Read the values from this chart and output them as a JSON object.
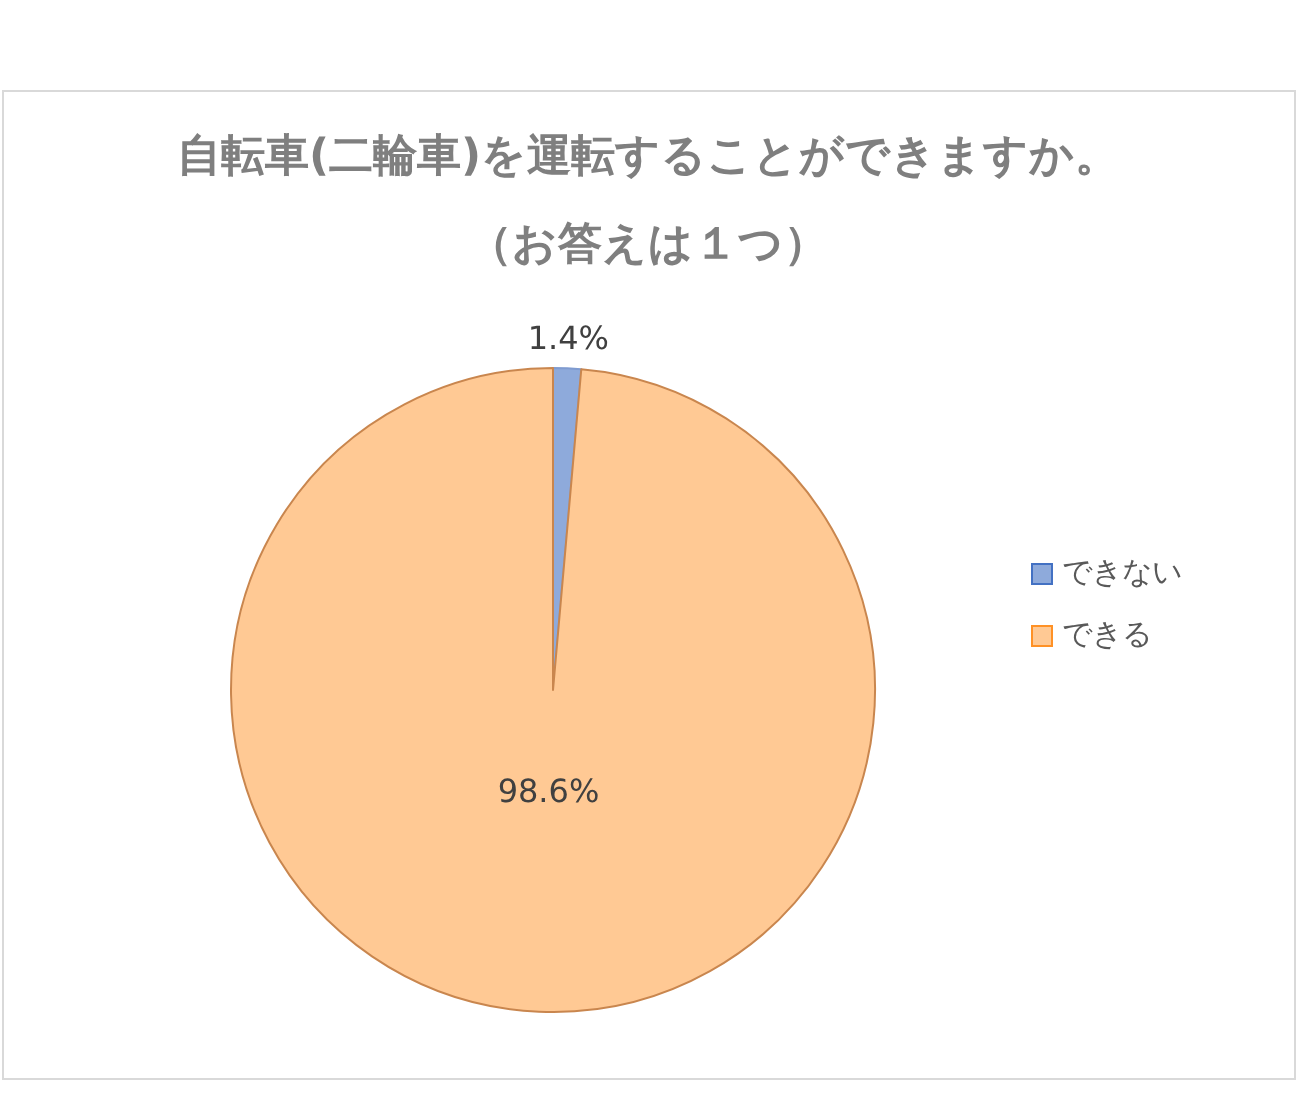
{
  "chart_data": {
    "type": "pie",
    "title": "自転車(二輪車)を運転することができますか。",
    "subtitle": "（お答えは１つ）",
    "categories": [
      "できない",
      "できる"
    ],
    "values": [
      1.4,
      98.6
    ],
    "colors": [
      "#8eaadb",
      "#ffc994"
    ],
    "value_labels": [
      "1.4%",
      "98.6%"
    ],
    "legend": "right"
  }
}
